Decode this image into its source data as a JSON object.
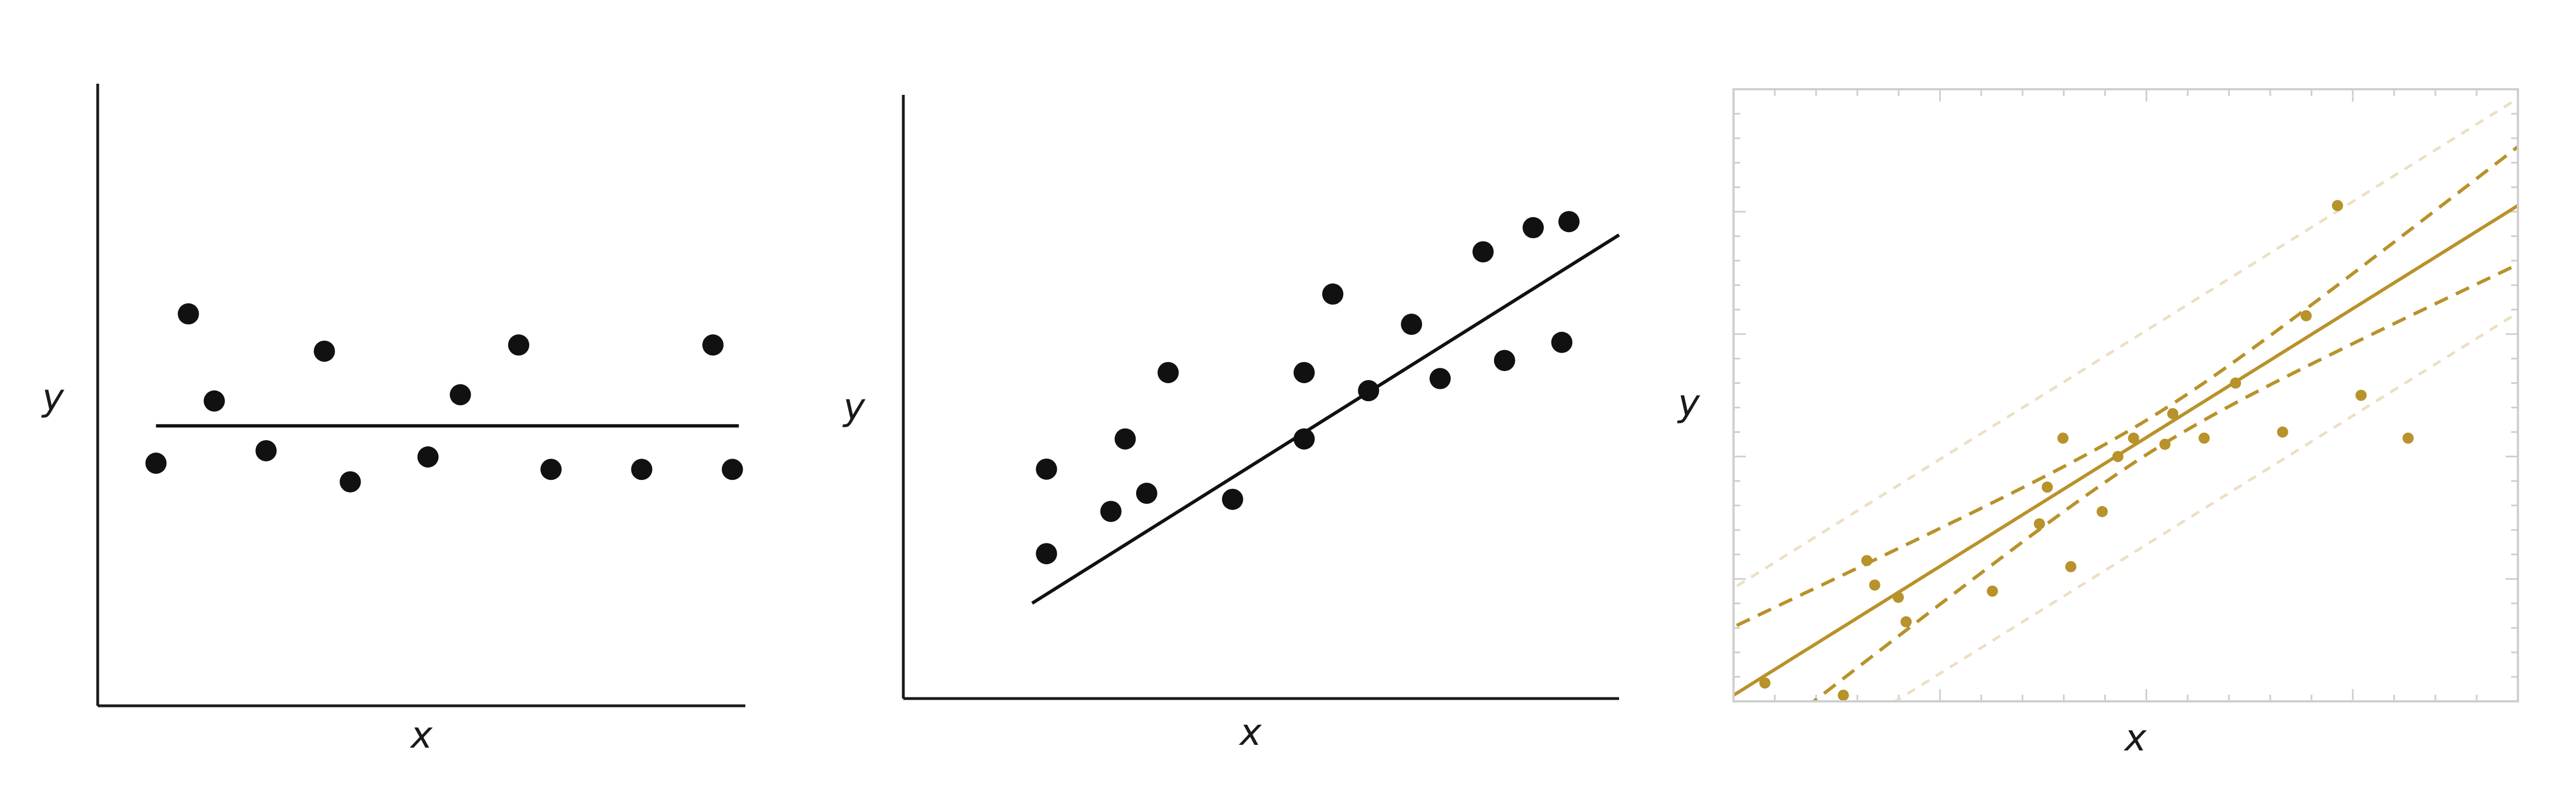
{
  "chart_data": [
    {
      "type": "scatter",
      "xlabel": "x",
      "ylabel": "y",
      "xlim": [
        0,
        10
      ],
      "ylim": [
        0,
        10
      ],
      "grid": false,
      "fit_line": {
        "intercept": 4.5,
        "slope": 0
      },
      "series": [
        {
          "x": [
            0.9,
            1.4,
            1.8,
            2.6,
            3.5,
            3.9,
            5.1,
            5.6,
            6.5,
            7.0,
            8.4,
            9.5,
            9.8
          ],
          "y": [
            3.9,
            6.3,
            4.9,
            4.1,
            5.7,
            3.6,
            4.0,
            5.0,
            5.8,
            3.8,
            3.8,
            5.8,
            3.8
          ]
        }
      ],
      "colors": {
        "points": "#111111",
        "line": "#111111"
      }
    },
    {
      "type": "scatter",
      "xlabel": "x",
      "ylabel": "y",
      "xlim": [
        0,
        10
      ],
      "ylim": [
        0,
        10
      ],
      "grid": false,
      "fit_line": {
        "intercept": 0.24,
        "slope": 0.744
      },
      "series": [
        {
          "x": [
            2.0,
            2.0,
            2.9,
            3.1,
            3.4,
            3.7,
            4.6,
            5.6,
            5.6,
            6.0,
            6.5,
            7.1,
            7.5,
            8.1,
            8.4,
            8.8,
            9.2,
            9.3
          ],
          "y": [
            2.4,
            3.8,
            3.1,
            4.3,
            3.4,
            5.4,
            3.3,
            5.4,
            4.3,
            6.7,
            5.1,
            6.2,
            5.3,
            7.4,
            5.6,
            7.8,
            5.9,
            7.9
          ]
        }
      ],
      "colors": {
        "points": "#111111",
        "line": "#111111"
      }
    },
    {
      "type": "scatter",
      "xlabel": "x",
      "ylabel": "y",
      "xlim": [
        0,
        10
      ],
      "ylim": [
        0,
        10
      ],
      "grid": false,
      "fit_line": {
        "intercept": 0.1,
        "slope": 0.8
      },
      "confidence_band": {
        "center_x": 5.4,
        "half_width_at_center": 0.28,
        "half_width_growth": 0.2
      },
      "prediction_band": {
        "offset": 1.75
      },
      "series": [
        {
          "x": [
            0.4,
            1.4,
            1.7,
            1.8,
            2.1,
            2.2,
            3.3,
            3.9,
            4.0,
            4.2,
            4.3,
            4.7,
            4.9,
            5.1,
            5.5,
            5.6,
            6.0,
            6.4,
            7.0,
            7.3,
            7.7,
            8.0,
            8.6
          ],
          "y": [
            0.3,
            0.1,
            2.3,
            1.9,
            1.7,
            1.3,
            1.8,
            2.9,
            3.5,
            4.3,
            2.2,
            3.1,
            4.0,
            4.3,
            4.2,
            4.7,
            4.3,
            5.2,
            4.4,
            6.3,
            8.1,
            5.0,
            4.3
          ]
        }
      ],
      "colors": {
        "points": "#b8922a",
        "fit": "#b8922a",
        "confidence": "#b8922a",
        "prediction": "#ebe0c2",
        "frame": "#cfcfcf"
      }
    }
  ]
}
